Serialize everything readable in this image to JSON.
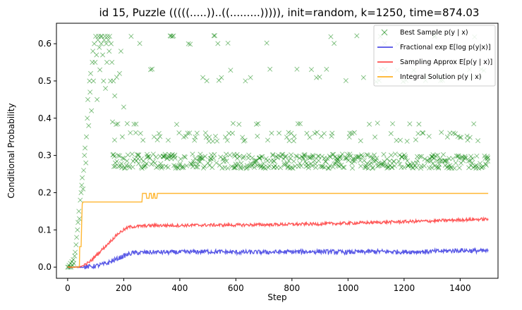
{
  "chart_data": {
    "type": "line",
    "title": "id 15, Puzzle (((((.....))..((.........))))), init=random, k=1250, time=874.03",
    "xlabel": "Step",
    "ylabel": "Conditional Probability",
    "xlim": [
      -40,
      1535
    ],
    "ylim": [
      -0.03,
      0.655
    ],
    "xticks": [
      0,
      200,
      400,
      600,
      800,
      1000,
      1200,
      1400
    ],
    "xtick_labels": [
      "0",
      "200",
      "400",
      "600",
      "800",
      "1000",
      "1200",
      "1400"
    ],
    "yticks": [
      0.0,
      0.1,
      0.2,
      0.3,
      0.4,
      0.5,
      0.6
    ],
    "ytick_labels": [
      "0.0",
      "0.1",
      "0.2",
      "0.3",
      "0.4",
      "0.5",
      "0.6"
    ],
    "legend_position": "top-right",
    "series": [
      {
        "name": "Best Sample p(y | x)",
        "kind": "scatter",
        "color": "#008000",
        "levels": [
          0.267,
          0.272,
          0.278,
          0.285,
          0.292,
          0.297,
          0.302,
          0.34,
          0.35,
          0.36,
          0.385,
          0.5,
          0.51,
          0.53,
          0.6,
          0.62
        ],
        "points": [
          [
            0,
            0.0
          ],
          [
            3,
            0.0
          ],
          [
            5,
            0.005
          ],
          [
            8,
            0.0
          ],
          [
            10,
            0.01
          ],
          [
            12,
            0.0
          ],
          [
            15,
            0.015
          ],
          [
            18,
            0.005
          ],
          [
            20,
            0.02
          ],
          [
            22,
            0.01
          ],
          [
            25,
            0.03
          ],
          [
            27,
            0.04
          ],
          [
            30,
            0.06
          ],
          [
            32,
            0.08
          ],
          [
            35,
            0.1
          ],
          [
            37,
            0.12
          ],
          [
            40,
            0.15
          ],
          [
            42,
            0.13
          ],
          [
            45,
            0.18
          ],
          [
            48,
            0.2
          ],
          [
            50,
            0.22
          ],
          [
            52,
            0.24
          ],
          [
            55,
            0.21
          ],
          [
            57,
            0.26
          ],
          [
            60,
            0.3
          ],
          [
            62,
            0.32
          ],
          [
            65,
            0.28
          ],
          [
            67,
            0.35
          ],
          [
            70,
            0.4
          ],
          [
            72,
            0.45
          ],
          [
            75,
            0.38
          ],
          [
            78,
            0.5
          ],
          [
            80,
            0.47
          ],
          [
            82,
            0.52
          ],
          [
            85,
            0.42
          ],
          [
            88,
            0.55
          ],
          [
            90,
            0.58
          ],
          [
            92,
            0.5
          ],
          [
            95,
            0.6
          ],
          [
            98,
            0.55
          ],
          [
            100,
            0.62
          ],
          [
            103,
            0.57
          ],
          [
            105,
            0.45
          ],
          [
            108,
            0.61
          ],
          [
            110,
            0.62
          ],
          [
            113,
            0.59
          ],
          [
            115,
            0.53
          ],
          [
            118,
            0.62
          ],
          [
            120,
            0.6
          ],
          [
            122,
            0.62
          ],
          [
            125,
            0.57
          ],
          [
            128,
            0.5
          ],
          [
            130,
            0.61
          ],
          [
            133,
            0.62
          ],
          [
            135,
            0.48
          ],
          [
            138,
            0.6
          ],
          [
            140,
            0.55
          ],
          [
            142,
            0.62
          ],
          [
            145,
            0.61
          ],
          [
            148,
            0.58
          ],
          [
            150,
            0.62
          ],
          [
            153,
            0.5
          ],
          [
            155,
            0.6
          ],
          [
            158,
            0.55
          ],
          [
            160,
            0.39
          ],
          [
            163,
            0.5
          ],
          [
            165,
            0.27
          ],
          [
            168,
            0.46
          ],
          [
            170,
            0.28
          ],
          [
            175,
            0.51
          ],
          [
            180,
            0.3
          ],
          [
            185,
            0.52
          ],
          [
            190,
            0.58
          ],
          [
            195,
            0.35
          ],
          [
            200,
            0.43
          ]
        ]
      },
      {
        "name": "Fractional exp E[log p(y|x)]",
        "kind": "line",
        "color": "#3030e0",
        "points": [
          [
            0,
            0.0
          ],
          [
            60,
            0.0
          ],
          [
            100,
            0.003
          ],
          [
            140,
            0.01
          ],
          [
            170,
            0.02
          ],
          [
            200,
            0.03
          ],
          [
            230,
            0.038
          ],
          [
            300,
            0.04
          ],
          [
            400,
            0.04
          ],
          [
            500,
            0.042
          ],
          [
            600,
            0.04
          ],
          [
            700,
            0.04
          ],
          [
            800,
            0.041
          ],
          [
            900,
            0.042
          ],
          [
            1000,
            0.04
          ],
          [
            1100,
            0.042
          ],
          [
            1200,
            0.041
          ],
          [
            1300,
            0.042
          ],
          [
            1400,
            0.045
          ],
          [
            1500,
            0.043
          ]
        ]
      },
      {
        "name": "Sampling Approx E[p(y | x)]",
        "kind": "line",
        "color": "#ff3030",
        "points": [
          [
            0,
            0.0
          ],
          [
            40,
            0.0
          ],
          [
            60,
            0.005
          ],
          [
            80,
            0.015
          ],
          [
            100,
            0.03
          ],
          [
            120,
            0.045
          ],
          [
            140,
            0.06
          ],
          [
            160,
            0.075
          ],
          [
            180,
            0.09
          ],
          [
            200,
            0.1
          ],
          [
            220,
            0.108
          ],
          [
            260,
            0.11
          ],
          [
            300,
            0.112
          ],
          [
            400,
            0.112
          ],
          [
            500,
            0.113
          ],
          [
            600,
            0.113
          ],
          [
            700,
            0.114
          ],
          [
            800,
            0.115
          ],
          [
            900,
            0.116
          ],
          [
            1000,
            0.118
          ],
          [
            1100,
            0.12
          ],
          [
            1200,
            0.122
          ],
          [
            1300,
            0.124
          ],
          [
            1400,
            0.127
          ],
          [
            1500,
            0.129
          ]
        ]
      },
      {
        "name": "Integral Solution p(y | x)",
        "kind": "line",
        "color": "#ffa500",
        "points": [
          [
            0,
            0.0
          ],
          [
            40,
            0.0
          ],
          [
            42,
            0.005
          ],
          [
            43,
            0.055
          ],
          [
            48,
            0.055
          ],
          [
            50,
            0.12
          ],
          [
            52,
            0.17
          ],
          [
            55,
            0.175
          ],
          [
            265,
            0.175
          ],
          [
            267,
            0.198
          ],
          [
            280,
            0.198
          ],
          [
            282,
            0.185
          ],
          [
            290,
            0.185
          ],
          [
            292,
            0.198
          ],
          [
            298,
            0.198
          ],
          [
            300,
            0.185
          ],
          [
            305,
            0.185
          ],
          [
            307,
            0.198
          ],
          [
            310,
            0.198
          ],
          [
            312,
            0.185
          ],
          [
            318,
            0.185
          ],
          [
            320,
            0.198
          ],
          [
            1500,
            0.198
          ]
        ]
      }
    ]
  }
}
